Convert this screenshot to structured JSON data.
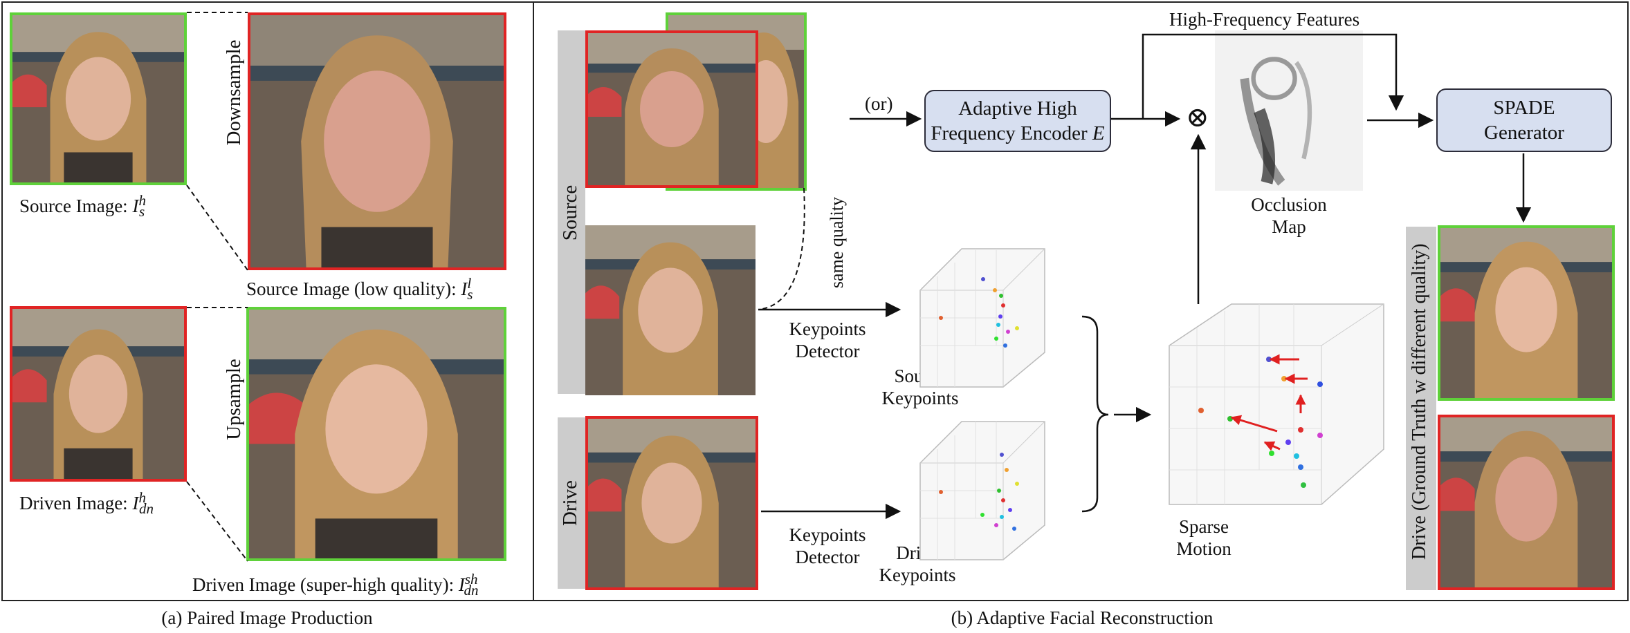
{
  "panel_a": {
    "caption": "(a) Paired Image Production",
    "downsample": "Downsample",
    "upsample": "Upsample",
    "source_label": "Source Image: ",
    "source_sym": "I",
    "source_sup": "h",
    "source_sub": "s",
    "source_low_label": "Source Image (low quality): ",
    "source_low_sym": "I",
    "source_low_sup": "l",
    "source_low_sub": "s",
    "driven_label": "Driven Image: ",
    "driven_sym": "I",
    "driven_sup": "h",
    "driven_sub": "dn",
    "driven_sh_label": "Driven Image (super-high quality): ",
    "driven_sh_sym": "I",
    "driven_sh_sup": "sh",
    "driven_sh_sub": "dn"
  },
  "panel_b": {
    "caption": "(b) Adaptive Facial Reconstruction",
    "source_bar": "Source",
    "drive_bar": "Drive",
    "or_label": "(or)",
    "same_quality": "same quality",
    "encoder_line1": "Adaptive High",
    "encoder_line2": "Frequency Encoder ",
    "encoder_sym": "E",
    "hf_features": "High-Frequency Features",
    "multiply_symbol": "⊗",
    "spade_line1": "SPADE",
    "spade_line2": "Generator",
    "occlusion_line1": "Occlusion",
    "occlusion_line2": "Map",
    "kp_detector_1_line1": "Keypoints",
    "kp_detector_1_line2": "Detector",
    "kp_detector_2_line1": "Keypoints",
    "kp_detector_2_line2": "Detector",
    "source_kp_line1": "Source",
    "source_kp_line2": "Keypoints",
    "drive_kp_line1": "Drive",
    "drive_kp_line2": "Keypoints",
    "sparse_line1": "Sparse",
    "sparse_line2": "Motion",
    "gt_bar": "Drive (Ground Truth w different quality)"
  },
  "colors": {
    "green_border": "#5fd13a",
    "red_border": "#e02424",
    "module_fill": "#d7dff0",
    "bar_gray": "#cccccc",
    "motion_arrow": "#e02020"
  }
}
